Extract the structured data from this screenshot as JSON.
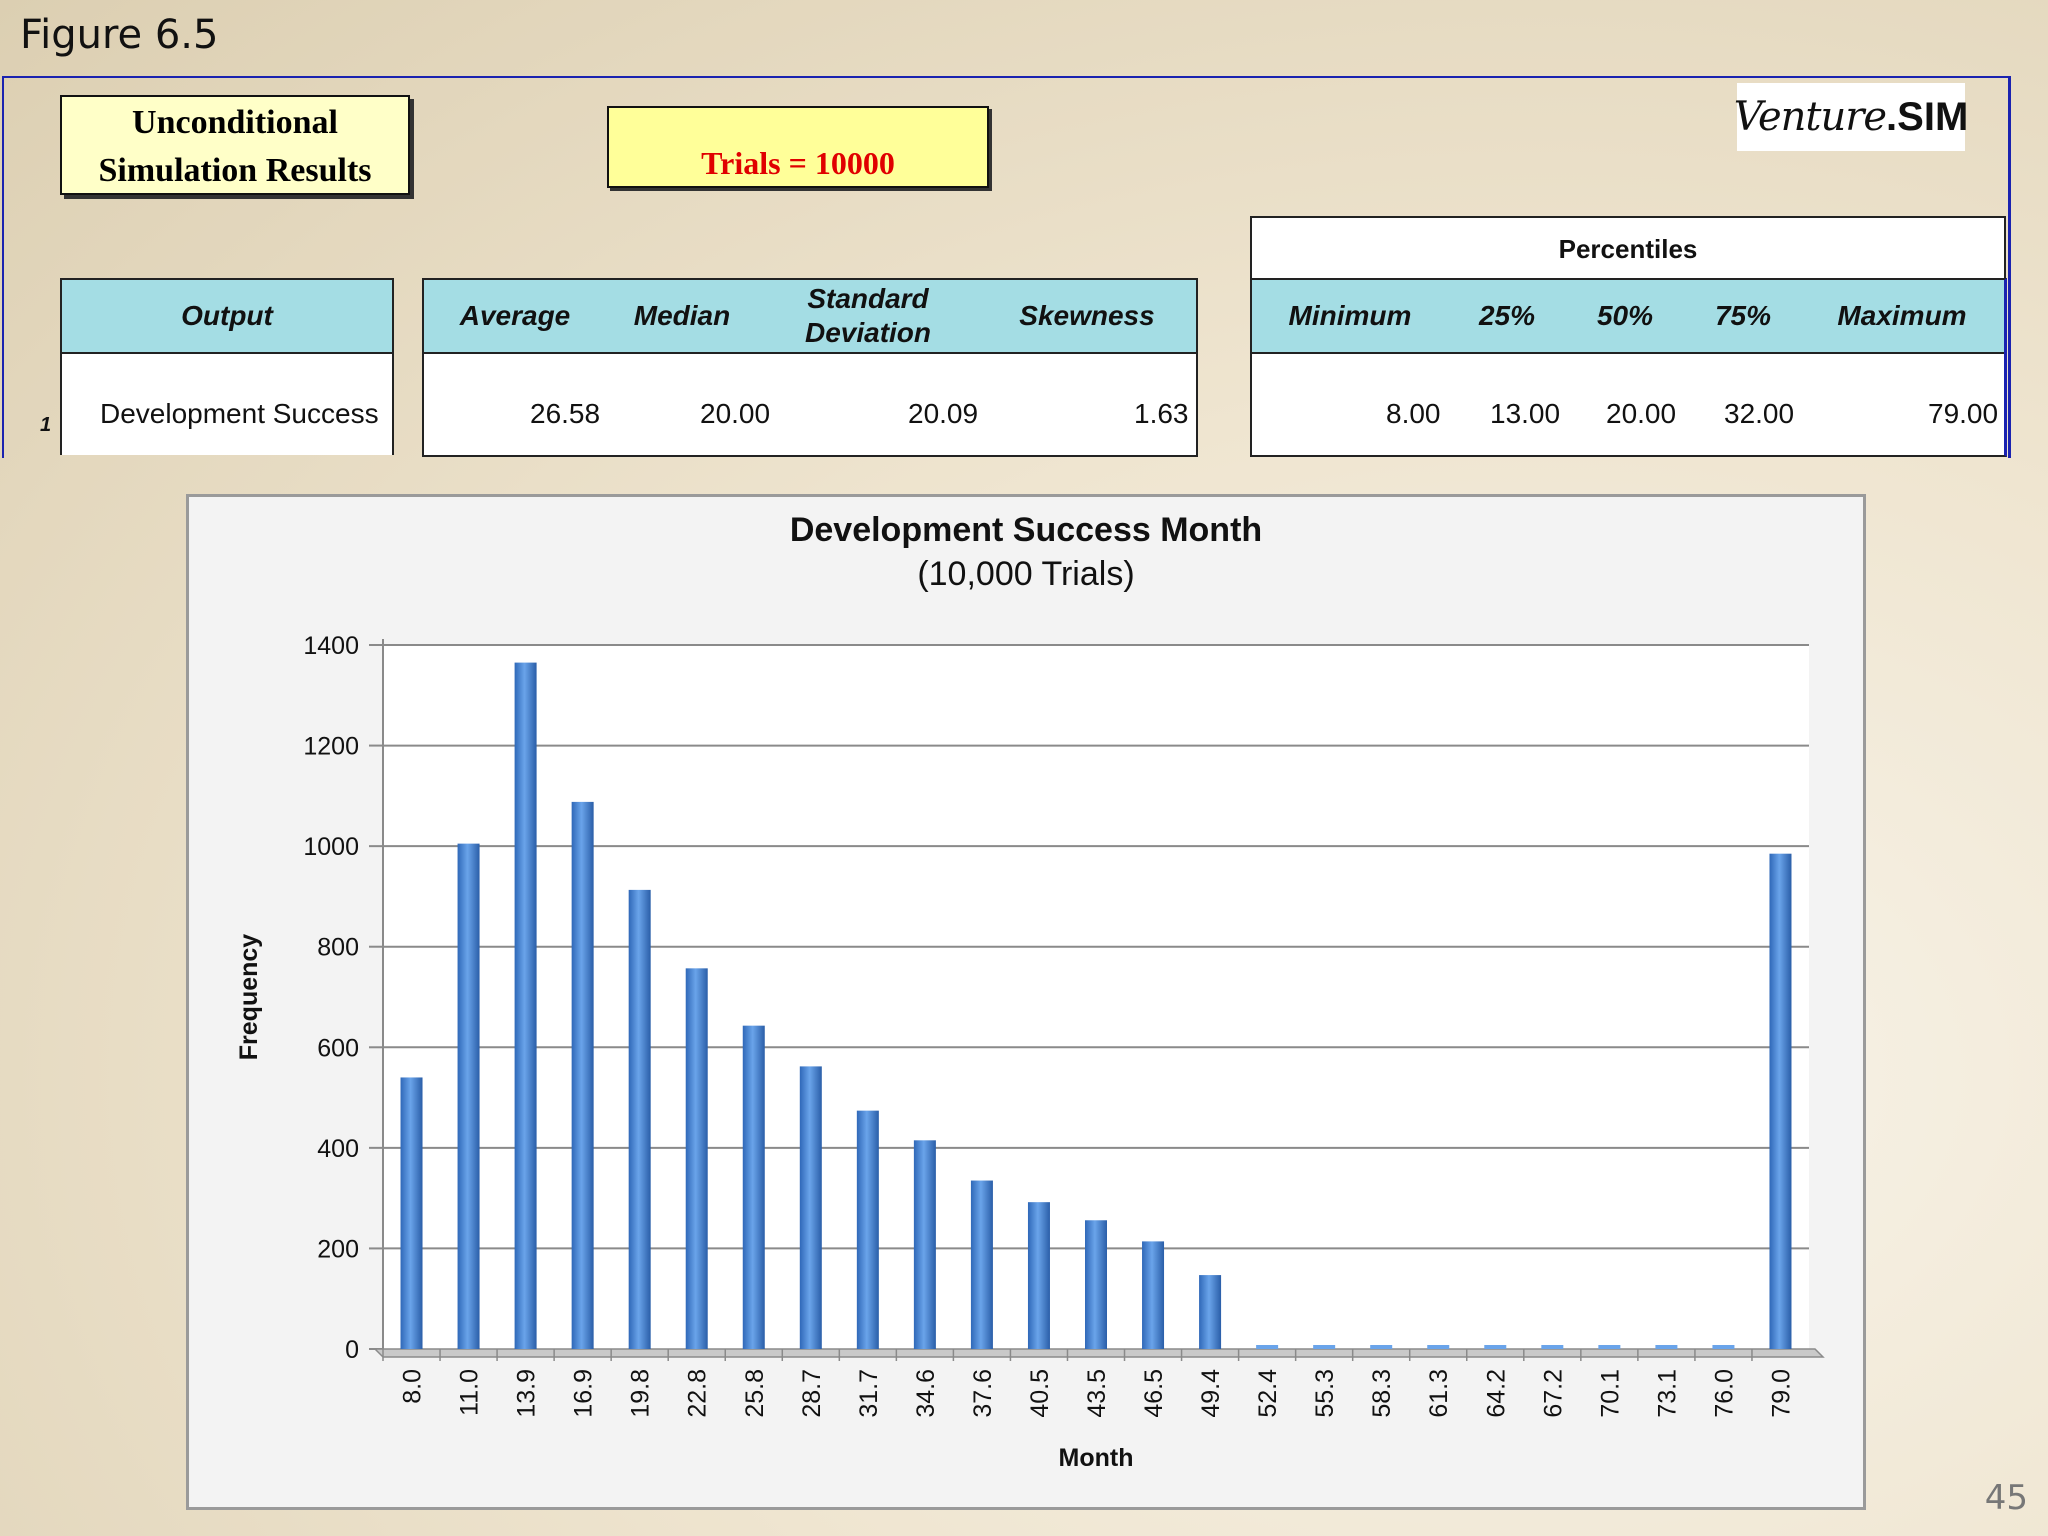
{
  "slide": {
    "figure_label": "Figure 6.5",
    "page_number": "45"
  },
  "header": {
    "title_line1": "Unconditional",
    "title_line2": "Simulation Results",
    "trials_label": "Trials = 10000",
    "logo_script": "Venture",
    "logo_bold": ".SIM"
  },
  "table": {
    "output_header": "Output",
    "stats_headers": [
      "Average",
      "Median",
      "Standard Deviation",
      "Skewness"
    ],
    "percentiles_title": "Percentiles",
    "percentile_headers": [
      "Minimum",
      "25%",
      "50%",
      "75%",
      "Maximum"
    ],
    "row": {
      "index": "1",
      "name": "Development Success",
      "average": "26.58",
      "median": "20.00",
      "std_dev": "20.09",
      "skewness": "1.63",
      "minimum": "8.00",
      "p25": "13.00",
      "p50": "20.00",
      "p75": "32.00",
      "maximum": "79.00"
    }
  },
  "chart_data": {
    "type": "bar",
    "title": "Development Success Month",
    "subtitle": "(10,000 Trials)",
    "xlabel": "Month",
    "ylabel": "Frequency",
    "ylim": [
      0,
      1400
    ],
    "yticks": [
      0,
      200,
      400,
      600,
      800,
      1000,
      1200,
      1400
    ],
    "grid": true,
    "bar_color": "#4a86d4",
    "categories": [
      "8.0",
      "11.0",
      "13.9",
      "16.9",
      "19.8",
      "22.8",
      "25.8",
      "28.7",
      "31.7",
      "34.6",
      "37.6",
      "40.5",
      "43.5",
      "46.5",
      "49.4",
      "52.4",
      "55.3",
      "58.3",
      "61.3",
      "64.2",
      "67.2",
      "70.1",
      "73.1",
      "76.0",
      "79.0"
    ],
    "values": [
      540,
      1005,
      1365,
      1088,
      913,
      757,
      643,
      562,
      474,
      415,
      335,
      292,
      256,
      214,
      147,
      0,
      0,
      0,
      0,
      0,
      0,
      0,
      0,
      0,
      985
    ]
  }
}
